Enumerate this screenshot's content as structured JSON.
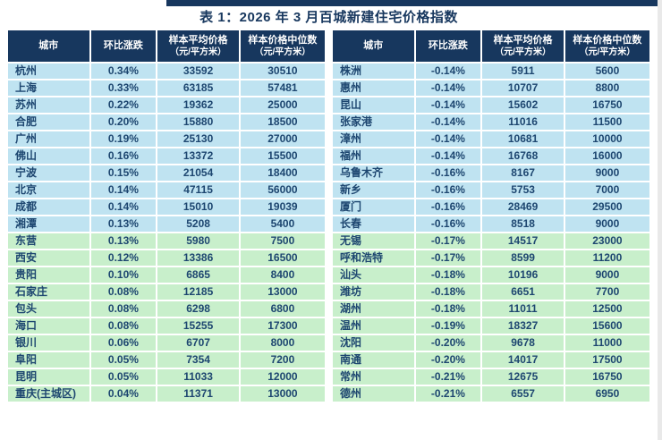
{
  "title": "表 1：2026 年 3 月百城新建住宅价格指数",
  "colors": {
    "header_bg": "#17375E",
    "header_text": "#FFFFFF",
    "rise_group_row_bg": "#BFE3F1",
    "lower_group_row_bg": "#C8EFCB",
    "cell_text": "#1D4670",
    "title_text": "#17375E"
  },
  "columns": [
    {
      "label": "城市",
      "sub": ""
    },
    {
      "label": "环比涨跌",
      "sub": ""
    },
    {
      "label": "样本平均价格",
      "sub": "（元/平方米）"
    },
    {
      "label": "样本价格中位数",
      "sub": "（元/平方米）"
    }
  ],
  "left_table": {
    "rows": [
      {
        "city": "杭州",
        "change": "0.34%",
        "avg": "33592",
        "median": "30510",
        "tone": "cyan"
      },
      {
        "city": "上海",
        "change": "0.33%",
        "avg": "63185",
        "median": "57481",
        "tone": "cyan"
      },
      {
        "city": "苏州",
        "change": "0.22%",
        "avg": "19362",
        "median": "25000",
        "tone": "cyan"
      },
      {
        "city": "合肥",
        "change": "0.20%",
        "avg": "15880",
        "median": "18500",
        "tone": "cyan"
      },
      {
        "city": "广州",
        "change": "0.19%",
        "avg": "25130",
        "median": "27000",
        "tone": "cyan"
      },
      {
        "city": "佛山",
        "change": "0.16%",
        "avg": "13372",
        "median": "15500",
        "tone": "cyan"
      },
      {
        "city": "宁波",
        "change": "0.15%",
        "avg": "21054",
        "median": "18400",
        "tone": "cyan"
      },
      {
        "city": "北京",
        "change": "0.14%",
        "avg": "47115",
        "median": "56000",
        "tone": "cyan"
      },
      {
        "city": "成都",
        "change": "0.14%",
        "avg": "15010",
        "median": "19039",
        "tone": "cyan"
      },
      {
        "city": "湘潭",
        "change": "0.13%",
        "avg": "5208",
        "median": "5400",
        "tone": "cyan"
      },
      {
        "city": "东营",
        "change": "0.13%",
        "avg": "5980",
        "median": "7500",
        "tone": "green"
      },
      {
        "city": "西安",
        "change": "0.12%",
        "avg": "13386",
        "median": "16500",
        "tone": "green"
      },
      {
        "city": "贵阳",
        "change": "0.10%",
        "avg": "6865",
        "median": "8400",
        "tone": "green"
      },
      {
        "city": "石家庄",
        "change": "0.08%",
        "avg": "12185",
        "median": "13000",
        "tone": "green"
      },
      {
        "city": "包头",
        "change": "0.08%",
        "avg": "6298",
        "median": "6800",
        "tone": "green"
      },
      {
        "city": "海口",
        "change": "0.08%",
        "avg": "15255",
        "median": "17300",
        "tone": "green"
      },
      {
        "city": "银川",
        "change": "0.06%",
        "avg": "6707",
        "median": "8000",
        "tone": "green"
      },
      {
        "city": "阜阳",
        "change": "0.05%",
        "avg": "7354",
        "median": "7200",
        "tone": "green"
      },
      {
        "city": "昆明",
        "change": "0.05%",
        "avg": "11033",
        "median": "12000",
        "tone": "green"
      },
      {
        "city": "重庆(主城区)",
        "change": "0.04%",
        "avg": "11371",
        "median": "13000",
        "tone": "green"
      }
    ]
  },
  "right_table": {
    "rows": [
      {
        "city": "株洲",
        "change": "-0.14%",
        "avg": "5911",
        "median": "5600",
        "tone": "cyan"
      },
      {
        "city": "惠州",
        "change": "-0.14%",
        "avg": "10707",
        "median": "8800",
        "tone": "cyan"
      },
      {
        "city": "昆山",
        "change": "-0.14%",
        "avg": "15602",
        "median": "16750",
        "tone": "cyan"
      },
      {
        "city": "张家港",
        "change": "-0.14%",
        "avg": "11016",
        "median": "11500",
        "tone": "cyan"
      },
      {
        "city": "漳州",
        "change": "-0.14%",
        "avg": "10681",
        "median": "10000",
        "tone": "cyan"
      },
      {
        "city": "福州",
        "change": "-0.14%",
        "avg": "16768",
        "median": "16000",
        "tone": "cyan"
      },
      {
        "city": "乌鲁木齐",
        "change": "-0.16%",
        "avg": "8167",
        "median": "9000",
        "tone": "cyan"
      },
      {
        "city": "新乡",
        "change": "-0.16%",
        "avg": "5753",
        "median": "7000",
        "tone": "cyan"
      },
      {
        "city": "厦门",
        "change": "-0.16%",
        "avg": "28469",
        "median": "29500",
        "tone": "cyan"
      },
      {
        "city": "长春",
        "change": "-0.16%",
        "avg": "8518",
        "median": "9000",
        "tone": "cyan"
      },
      {
        "city": "无锡",
        "change": "-0.17%",
        "avg": "14517",
        "median": "23000",
        "tone": "green"
      },
      {
        "city": "呼和浩特",
        "change": "-0.17%",
        "avg": "8599",
        "median": "11200",
        "tone": "green"
      },
      {
        "city": "汕头",
        "change": "-0.18%",
        "avg": "10196",
        "median": "9000",
        "tone": "green"
      },
      {
        "city": "潍坊",
        "change": "-0.18%",
        "avg": "6651",
        "median": "7700",
        "tone": "green"
      },
      {
        "city": "湖州",
        "change": "-0.18%",
        "avg": "11011",
        "median": "12500",
        "tone": "green"
      },
      {
        "city": "温州",
        "change": "-0.19%",
        "avg": "18327",
        "median": "15600",
        "tone": "green"
      },
      {
        "city": "沈阳",
        "change": "-0.20%",
        "avg": "9678",
        "median": "11000",
        "tone": "green"
      },
      {
        "city": "南通",
        "change": "-0.20%",
        "avg": "14017",
        "median": "17500",
        "tone": "green"
      },
      {
        "city": "常州",
        "change": "-0.21%",
        "avg": "12675",
        "median": "16750",
        "tone": "green"
      },
      {
        "city": "德州",
        "change": "-0.21%",
        "avg": "6557",
        "median": "6950",
        "tone": "green"
      }
    ]
  }
}
